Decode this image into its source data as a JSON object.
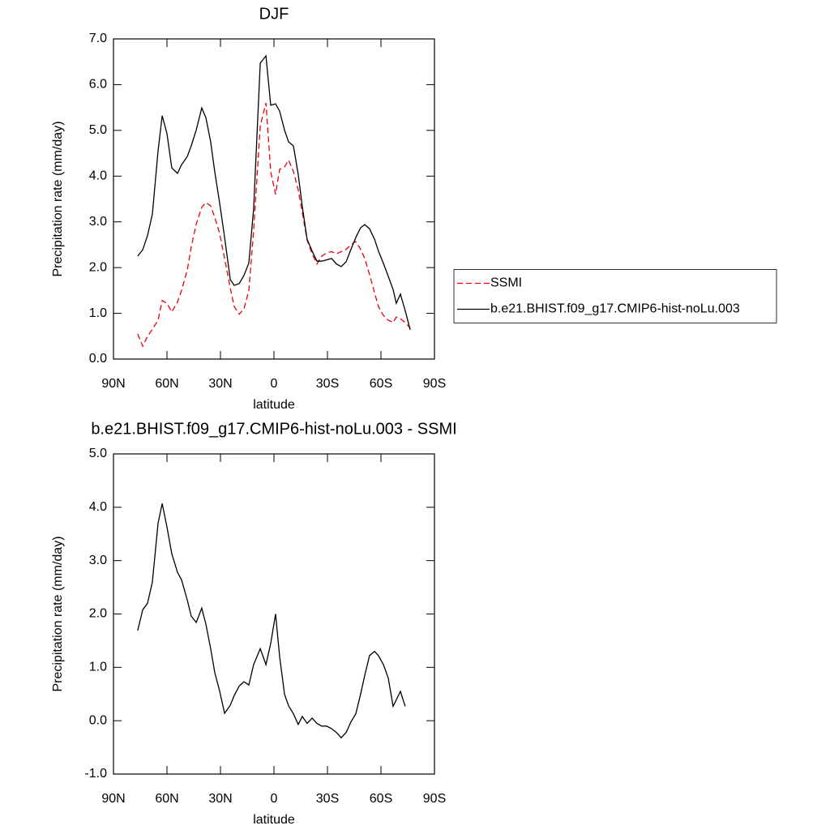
{
  "chart_data": [
    {
      "type": "line",
      "title": "DJF",
      "x_label": "latitude",
      "y_label": "Precipitation rate (mm/day)",
      "xlim": [
        90,
        -90
      ],
      "ylim": [
        0,
        7
      ],
      "xticks": [
        {
          "value": 90,
          "label": "90N"
        },
        {
          "value": 60,
          "label": "60N"
        },
        {
          "value": 30,
          "label": "30N"
        },
        0,
        {
          "value": -30,
          "label": "30S"
        },
        {
          "value": -60,
          "label": "60S"
        },
        {
          "value": -90,
          "label": "90S"
        }
      ],
      "yticks": [
        {
          "value": 0,
          "label": "0.0"
        },
        {
          "value": 1,
          "label": "1.0"
        },
        {
          "value": 2,
          "label": "2.0"
        },
        {
          "value": 3,
          "label": "3.0"
        },
        {
          "value": 4,
          "label": "4.0"
        },
        {
          "value": 5,
          "label": "5.0"
        },
        {
          "value": 6,
          "label": "6.0"
        },
        {
          "value": 7,
          "label": "7.0"
        }
      ],
      "legend": "right",
      "x": [
        76.4,
        73.6,
        70.9,
        68.2,
        65.0,
        62.7,
        60.0,
        57.3,
        54.1,
        51.8,
        48.6,
        46.4,
        43.6,
        40.5,
        38.2,
        35.5,
        33.2,
        30.5,
        27.7,
        24.5,
        22.3,
        19.5,
        16.8,
        14.1,
        11.4,
        7.7,
        4.5,
        1.8,
        -0.9,
        -3.2,
        -5.9,
        -8.2,
        -10.9,
        -13.6,
        -15.9,
        -18.6,
        -21.4,
        -24.1,
        -26.8,
        -29.5,
        -32.3,
        -35.0,
        -37.7,
        -40.5,
        -43.2,
        -45.9,
        -48.6,
        -50.9,
        -53.6,
        -56.4,
        -58.6,
        -61.4,
        -64.1,
        -66.8,
        -68.6,
        -70.9,
        -73.6,
        -76.4
      ],
      "series": [
        {
          "name": "SSMI",
          "color": "#e8000b",
          "dashed": true,
          "values": [
            0.55,
            0.28,
            0.5,
            0.65,
            0.85,
            1.28,
            1.22,
            1.03,
            1.25,
            1.5,
            1.95,
            2.45,
            2.95,
            3.32,
            3.42,
            3.35,
            3.1,
            2.75,
            2.2,
            1.55,
            1.15,
            0.98,
            1.1,
            1.5,
            2.8,
            5.1,
            5.6,
            4.1,
            3.6,
            4.15,
            4.2,
            4.35,
            4.1,
            3.7,
            3.2,
            2.6,
            2.3,
            2.08,
            2.25,
            2.32,
            2.35,
            2.3,
            2.35,
            2.4,
            2.5,
            2.57,
            2.4,
            2.2,
            1.85,
            1.45,
            1.15,
            0.95,
            0.85,
            0.8,
            0.92,
            0.88,
            0.8,
            0.68
          ]
        },
        {
          "name": "b.e21.BHIST.f09_g17.CMIP6-hist-noLu.003",
          "color": "#000000",
          "dashed": false,
          "values": [
            2.25,
            2.39,
            2.7,
            3.17,
            4.55,
            5.32,
            4.93,
            4.18,
            4.06,
            4.25,
            4.43,
            4.66,
            5.01,
            5.49,
            5.28,
            4.75,
            4.09,
            3.42,
            2.66,
            1.74,
            1.61,
            1.65,
            1.83,
            2.1,
            3.28,
            6.47,
            6.63,
            5.55,
            5.58,
            5.42,
            5.01,
            4.75,
            4.66,
            4.04,
            3.33,
            2.62,
            2.36,
            2.14,
            2.14,
            2.17,
            2.2,
            2.08,
            2.02,
            2.13,
            2.4,
            2.66,
            2.87,
            2.94,
            2.85,
            2.62,
            2.36,
            2.09,
            1.81,
            1.52,
            1.22,
            1.42,
            1.06,
            0.64
          ]
        }
      ]
    },
    {
      "type": "line",
      "title": "b.e21.BHIST.f09_g17.CMIP6-hist-noLu.003 - SSMI",
      "x_label": "latitude",
      "y_label": "Precipitation rate (mm/day)",
      "xlim": [
        90,
        -90
      ],
      "ylim": [
        -1,
        5
      ],
      "xticks": [
        {
          "value": 90,
          "label": "90N"
        },
        {
          "value": 60,
          "label": "60N"
        },
        {
          "value": 30,
          "label": "30N"
        },
        0,
        {
          "value": -30,
          "label": "30S"
        },
        {
          "value": -60,
          "label": "60S"
        },
        {
          "value": -90,
          "label": "90S"
        }
      ],
      "yticks": [
        {
          "value": -1,
          "label": "-1.0"
        },
        {
          "value": 0,
          "label": "0.0"
        },
        {
          "value": 1,
          "label": "1.0"
        },
        {
          "value": 2,
          "label": "2.0"
        },
        {
          "value": 3,
          "label": "3.0"
        },
        {
          "value": 4,
          "label": "4.0"
        },
        {
          "value": 5,
          "label": "5.0"
        }
      ],
      "x": [
        76.4,
        73.6,
        70.9,
        68.2,
        65.0,
        62.7,
        60.0,
        57.3,
        54.1,
        51.8,
        48.6,
        46.4,
        43.6,
        40.5,
        38.2,
        35.5,
        33.2,
        30.5,
        27.7,
        24.5,
        22.3,
        19.5,
        16.8,
        14.1,
        11.4,
        7.7,
        4.5,
        1.8,
        -0.9,
        -3.2,
        -5.9,
        -8.2,
        -10.9,
        -13.6,
        -15.9,
        -18.6,
        -21.4,
        -24.1,
        -26.8,
        -29.5,
        -32.3,
        -35.0,
        -37.7,
        -40.5,
        -43.2,
        -45.9,
        -48.6,
        -50.9,
        -53.6,
        -56.4,
        -58.6,
        -61.4,
        -64.1,
        -66.8,
        -70.9,
        -73.6
      ],
      "series": [
        {
          "color": "#000000",
          "dashed": false,
          "values": [
            1.69,
            2.08,
            2.2,
            2.6,
            3.7,
            4.07,
            3.63,
            3.13,
            2.78,
            2.64,
            2.26,
            1.96,
            1.84,
            2.11,
            1.81,
            1.35,
            0.9,
            0.56,
            0.14,
            0.29,
            0.47,
            0.65,
            0.73,
            0.67,
            1.05,
            1.35,
            1.05,
            1.45,
            2.0,
            1.2,
            0.5,
            0.28,
            0.13,
            -0.07,
            0.08,
            -0.05,
            0.05,
            -0.05,
            -0.1,
            -0.1,
            -0.15,
            -0.22,
            -0.32,
            -0.22,
            -0.02,
            0.13,
            0.5,
            0.85,
            1.22,
            1.3,
            1.22,
            1.05,
            0.8,
            0.27,
            0.55,
            0.27
          ]
        }
      ]
    }
  ]
}
